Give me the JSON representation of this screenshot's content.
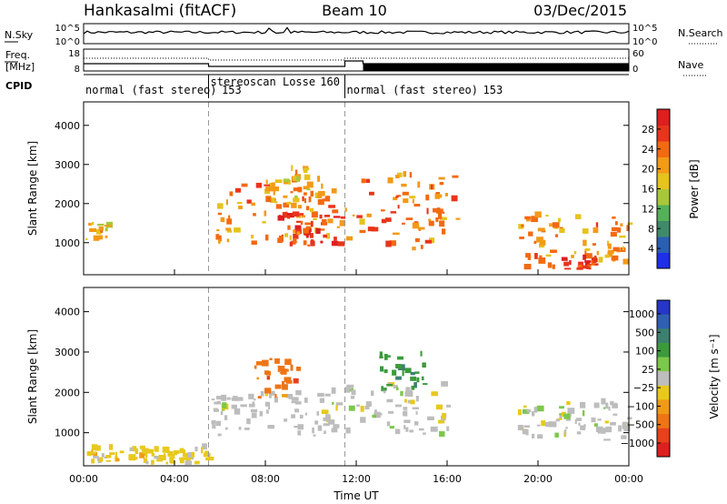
{
  "header": {
    "station": "Hankasalmi (fitACF)",
    "beam": "Beam 10",
    "date": "03/Dec/2015"
  },
  "side_labels": {
    "nsky": "N.Sky",
    "freq_line1": "Freq.",
    "freq_line2": "[MHz]",
    "cpid": "CPID",
    "nsearch": "N.Search",
    "nave": "Nave"
  },
  "mini_axes": {
    "noise_ticks_left": [
      "10^5",
      "10^0"
    ],
    "noise_ticks_right": [
      "10^5",
      "10^0"
    ],
    "freq_ticks_left": [
      "18",
      "8"
    ],
    "nave_ticks_right": [
      "60",
      "0"
    ]
  },
  "cpid_segments": [
    {
      "label": "normal (fast stereo)",
      "id": "153",
      "start_hr": 0,
      "end_hr": 5.5
    },
    {
      "label": "stereoscan Losse",
      "id": "160",
      "start_hr": 5.5,
      "end_hr": 11.5
    },
    {
      "label": "normal (fast stereo)",
      "id": "153",
      "start_hr": 11.5,
      "end_hr": 24
    }
  ],
  "colors": {
    "power": [
      "#1f2ee8",
      "#2a5fb4",
      "#3f8a6a",
      "#55b05a",
      "#a8c83a",
      "#e6c31d",
      "#f39a17",
      "#f26a12",
      "#e8351b",
      "#dd1f1f"
    ],
    "velocity": [
      "#2536c9",
      "#2f5fb3",
      "#3d8070",
      "#3c9a3c",
      "#7cc84a",
      "#bdbdbd",
      "#e8c91c",
      "#f19a16",
      "#ef7414",
      "#e8411b",
      "#dd1f1f"
    ]
  },
  "chart_data": [
    {
      "type": "heatmap",
      "name": "power",
      "xlabel": "",
      "ylabel": "Slant Range [km]",
      "xlim": [
        0,
        24
      ],
      "ylim": [
        180,
        4600
      ],
      "yticks": [
        1000,
        2000,
        3000,
        4000
      ],
      "colorbar": {
        "label": "Power [dB]",
        "ticks": [
          4,
          8,
          12,
          16,
          20,
          24,
          28
        ],
        "range": [
          0,
          32
        ]
      },
      "features": [
        {
          "t": [
            0.0,
            1.0
          ],
          "r": [
            1000,
            1600
          ],
          "level": 18
        },
        {
          "t": [
            5.6,
            11.4
          ],
          "r": [
            900,
            2600
          ],
          "level": 22
        },
        {
          "t": [
            8.5,
            11.4
          ],
          "r": [
            900,
            1700
          ],
          "level": 28
        },
        {
          "t": [
            8.0,
            10.0
          ],
          "r": [
            2000,
            2900
          ],
          "level": 20
        },
        {
          "t": [
            11.5,
            16.5
          ],
          "r": [
            800,
            2700
          ],
          "level": 24
        },
        {
          "t": [
            19.0,
            24.0
          ],
          "r": [
            300,
            1700
          ],
          "level": 22
        },
        {
          "t": [
            21.0,
            22.5
          ],
          "r": [
            300,
            600
          ],
          "level": 28
        }
      ]
    },
    {
      "type": "heatmap",
      "name": "velocity",
      "xlabel": "Time UT",
      "ylabel": "Slant Range [km]",
      "xlim": [
        0,
        24
      ],
      "ylim": [
        180,
        4600
      ],
      "xtick_labels": [
        "00:00",
        "04:00",
        "08:00",
        "12:00",
        "16:00",
        "20:00",
        "00:00"
      ],
      "yticks": [
        1000,
        2000,
        3000,
        4000
      ],
      "colorbar": {
        "label": "Velocity [m s⁻¹]",
        "ticks": [
          "1000",
          "500",
          "100",
          "25",
          "−25",
          "−100",
          "−500",
          "−1000"
        ]
      },
      "features": [
        {
          "t": [
            5.6,
            11.4
          ],
          "r": [
            900,
            2000
          ],
          "value": 0
        },
        {
          "t": [
            7.5,
            9.5
          ],
          "r": [
            1800,
            2800
          ],
          "value": -300
        },
        {
          "t": [
            11.5,
            16.0
          ],
          "r": [
            900,
            2200
          ],
          "value": 0
        },
        {
          "t": [
            13.0,
            15.0
          ],
          "r": [
            2000,
            2900
          ],
          "value": 200
        },
        {
          "t": [
            0.0,
            5.5
          ],
          "r": [
            200,
            600
          ],
          "value": -60
        },
        {
          "t": [
            19.0,
            24.0
          ],
          "r": [
            800,
            1700
          ],
          "value": 0
        }
      ]
    }
  ]
}
